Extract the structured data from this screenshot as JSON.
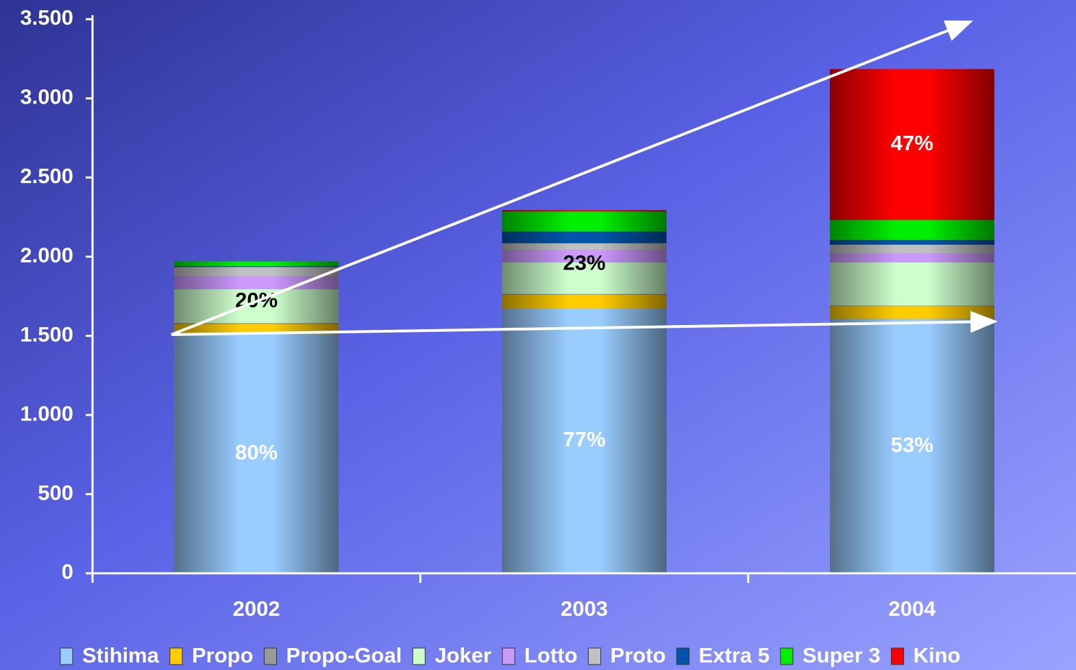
{
  "chart_data": {
    "type": "stacked-bar",
    "categories": [
      "2002",
      "2003",
      "2004"
    ],
    "series": [
      {
        "name": "Stihima",
        "color": "#99ccff",
        "values": [
          1510,
          1672,
          1606
        ]
      },
      {
        "name": "Propo",
        "color": "#ffcc00",
        "values": [
          65,
          87,
          82
        ]
      },
      {
        "name": "Propo-Goal",
        "color": "#999999",
        "values": [
          5,
          5,
          3
        ]
      },
      {
        "name": "Joker",
        "color": "#ccffcc",
        "values": [
          215,
          200,
          273
        ]
      },
      {
        "name": "Lotto",
        "color": "#cc99ff",
        "values": [
          80,
          78,
          56
        ]
      },
      {
        "name": "Proto",
        "color": "#c0c0c0",
        "values": [
          60,
          43,
          56
        ]
      },
      {
        "name": "Extra 5",
        "color": "#0055aa",
        "values": [
          5,
          74,
          30
        ]
      },
      {
        "name": "Super 3",
        "color": "#00ee00",
        "values": [
          30,
          126,
          126
        ]
      },
      {
        "name": "Kino",
        "color": "#ff0000",
        "values": [
          0,
          9,
          953
        ]
      }
    ],
    "share_labels": [
      [
        "80%",
        "20%"
      ],
      [
        "77%",
        "23%"
      ],
      [
        "53%",
        "47%"
      ]
    ],
    "ylim": [
      0,
      3500
    ],
    "yticks": [
      0,
      500,
      {
        "value": 1000,
        "label": "1.000"
      },
      {
        "value": 1500,
        "label": "1.500"
      },
      {
        "value": 2000,
        "label": "2.000"
      },
      {
        "value": 2500,
        "label": "2.500"
      },
      {
        "value": 3000,
        "label": "3.000"
      },
      {
        "value": 3500,
        "label": "3.500"
      }
    ]
  }
}
